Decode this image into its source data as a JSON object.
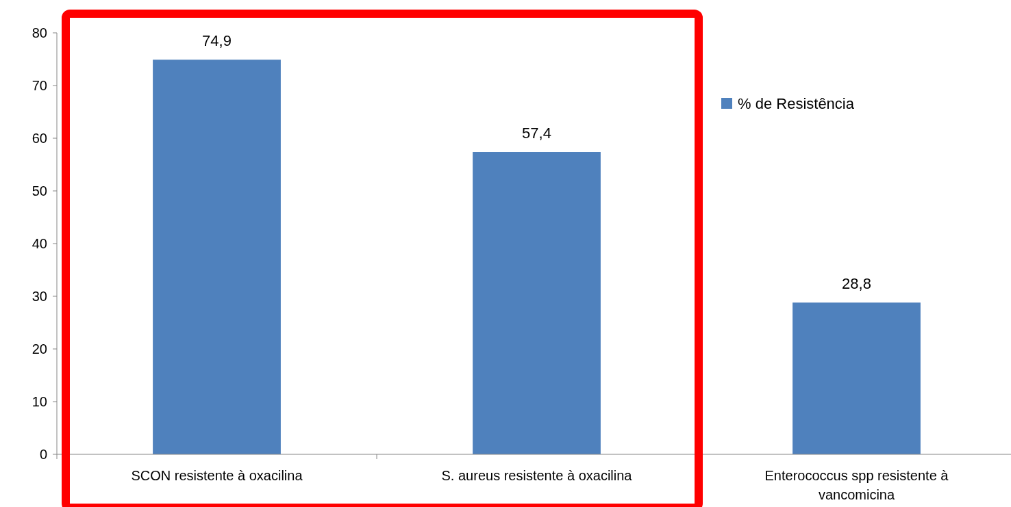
{
  "chart_data": {
    "type": "bar",
    "categories": [
      "SCON resistente à oxacilina",
      "S. aureus resistente à oxacilina",
      "Enterococcus spp resistente à vancomicina"
    ],
    "series": [
      {
        "name": "% de Resistência",
        "color": "#4f81bd",
        "values": [
          74.9,
          57.4,
          28.8
        ]
      }
    ],
    "value_labels": [
      "74,9",
      "57,4",
      "28,8"
    ],
    "ylim": [
      0,
      80
    ],
    "yticks": [
      0,
      10,
      20,
      30,
      40,
      50,
      60,
      70,
      80
    ],
    "grid": false,
    "legend": "right"
  }
}
